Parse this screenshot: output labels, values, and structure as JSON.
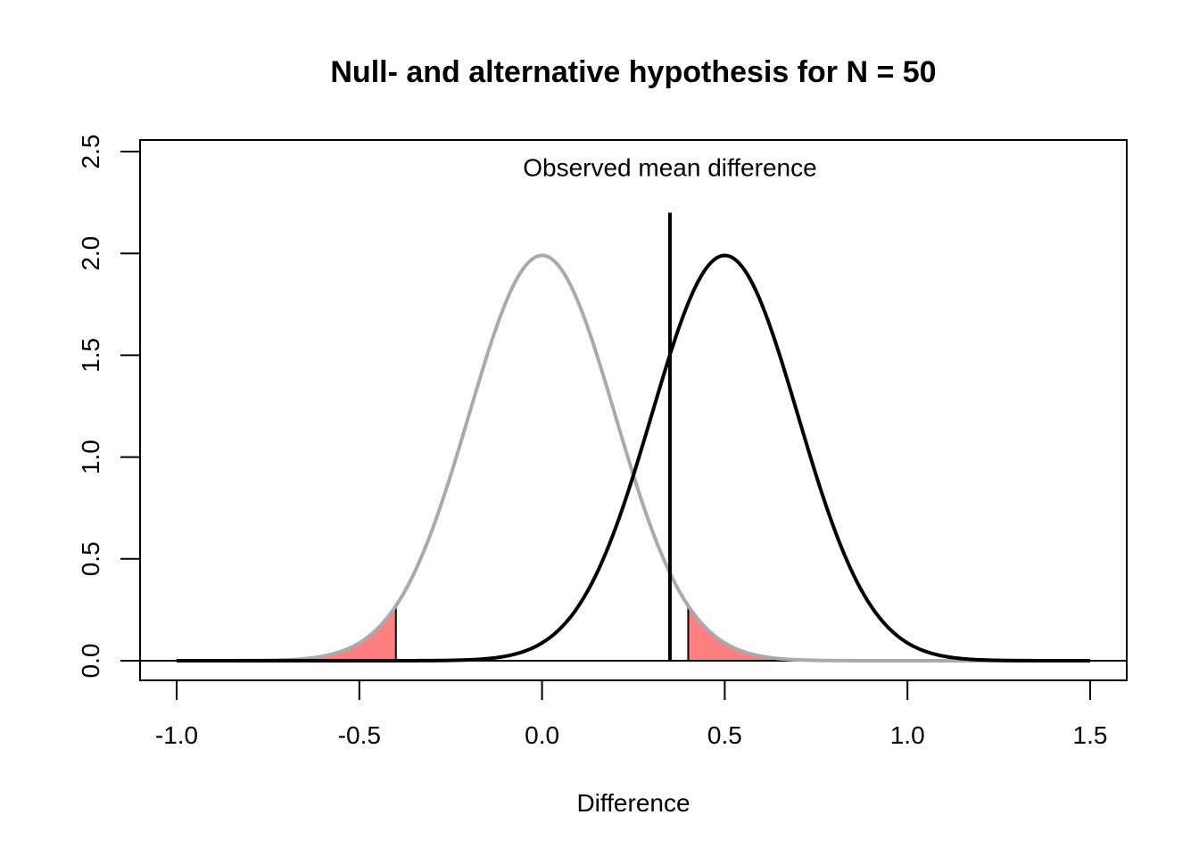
{
  "chart_data": {
    "type": "line",
    "title": "Null- and alternative hypothesis for N =  50",
    "xlabel": "Difference",
    "ylabel": "",
    "xlim": [
      -1.0,
      1.5
    ],
    "ylim": [
      0.0,
      2.5
    ],
    "x_ticks": [
      "-1.0",
      "-0.5",
      "0.0",
      "0.5",
      "1.0",
      "1.5"
    ],
    "y_ticks": [
      "0.0",
      "0.5",
      "1.0",
      "1.5",
      "2.0",
      "2.5"
    ],
    "grid": false,
    "legend": "none",
    "series": [
      {
        "distribution": "normal",
        "mean": 0.0,
        "sd": 0.2,
        "x_range": [
          -1.0,
          1.5
        ],
        "color": "#aaaaaa",
        "peak_density": 1.99
      },
      {
        "distribution": "normal",
        "mean": 0.5,
        "sd": 0.2,
        "x_range": [
          -1.0,
          1.5
        ],
        "color": "#000000",
        "peak_density": 1.99
      }
    ],
    "critical_regions": [
      {
        "from": -1.0,
        "to": -0.4,
        "under": 0,
        "color": "#ff8080"
      },
      {
        "from": 0.4,
        "to": 1.5,
        "under": 0,
        "color": "#ff8080"
      }
    ],
    "observed": {
      "x": 0.35,
      "y_top": 2.2,
      "label": "Observed mean difference",
      "label_x": 0.35,
      "label_y": 2.38
    },
    "baseline_y": 0
  }
}
